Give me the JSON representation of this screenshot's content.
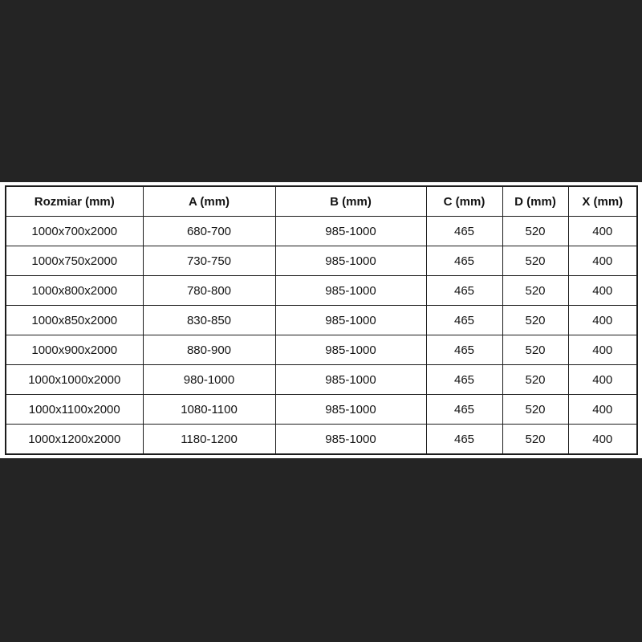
{
  "colors": {
    "page-background": "#242424",
    "panel-background": "#ffffff",
    "table-border": "#1c1c1c",
    "table-text": "#141414"
  },
  "chart_data": {
    "type": "table",
    "legend": "none",
    "grid": "full table borders",
    "columns": [
      "Rozmiar (mm)",
      "A (mm)",
      "B (mm)",
      "C (mm)",
      "D (mm)",
      "X (mm)"
    ],
    "rows": [
      [
        "1000x700x2000",
        "680-700",
        "985-1000",
        "465",
        "520",
        "400"
      ],
      [
        "1000x750x2000",
        "730-750",
        "985-1000",
        "465",
        "520",
        "400"
      ],
      [
        "1000x800x2000",
        "780-800",
        "985-1000",
        "465",
        "520",
        "400"
      ],
      [
        "1000x850x2000",
        "830-850",
        "985-1000",
        "465",
        "520",
        "400"
      ],
      [
        "1000x900x2000",
        "880-900",
        "985-1000",
        "465",
        "520",
        "400"
      ],
      [
        "1000x1000x2000",
        "980-1000",
        "985-1000",
        "465",
        "520",
        "400"
      ],
      [
        "1000x1100x2000",
        "1080-1100",
        "985-1000",
        "465",
        "520",
        "400"
      ],
      [
        "1000x1200x2000",
        "1180-1200",
        "985-1000",
        "465",
        "520",
        "400"
      ]
    ]
  }
}
